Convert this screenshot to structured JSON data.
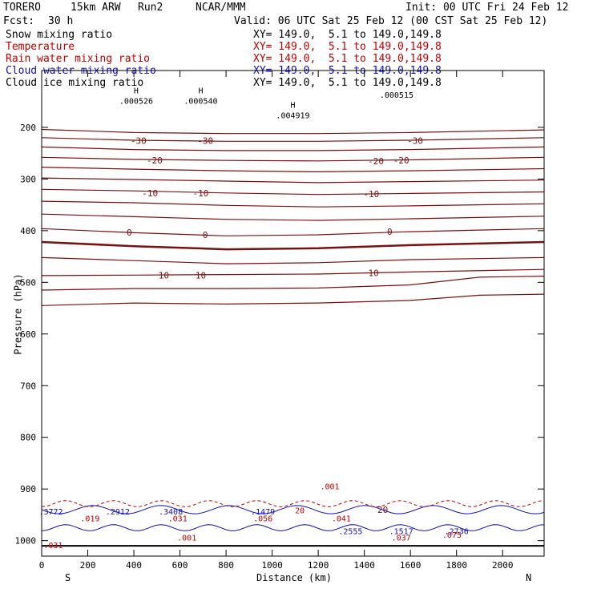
{
  "header": {
    "model": "TORERO",
    "resolution": "15km ARW",
    "run": "Run2",
    "org": "NCAR/MMM",
    "init": "Init: 00 UTC Fri 24 Feb 12",
    "fcst_label": "Fcst:",
    "fcst_value": "30 h",
    "valid": "Valid: 06 UTC Sat 25 Feb 12 (00 CST Sat 25 Feb 12)"
  },
  "legend": [
    {
      "name": "Snow mixing ratio",
      "xy": "XY= 149.0,  5.1 to 149.0,149.8",
      "color": "#000000"
    },
    {
      "name": "Temperature",
      "xy": "XY= 149.0,  5.1 to 149.0,149.8",
      "color": "#c00000"
    },
    {
      "name": "Rain water mixing ratio",
      "xy": "XY= 149.0,  5.1 to 149.0,149.8",
      "color": "#c00000"
    },
    {
      "name": "Cloud water mixing ratio",
      "xy": "XY= 149.0,  5.1 to 149.0,149.8",
      "color": "#1010c0"
    },
    {
      "name": "Cloud ice mixing ratio",
      "xy": "XY= 149.0,  5.1 to 149.0,149.8",
      "color": "#000000"
    }
  ],
  "chart_data": {
    "type": "cross-section contour",
    "xlabel": "Distance (km)",
    "ylabel": "Pressure (hPa)",
    "xlim": [
      0,
      2180
    ],
    "ylim": [
      1030,
      90
    ],
    "x_ticks": [
      0,
      200,
      400,
      600,
      800,
      1000,
      1200,
      1400,
      1600,
      1800,
      2000
    ],
    "y_ticks": [
      200,
      300,
      400,
      500,
      600,
      700,
      800,
      900,
      1000
    ],
    "endpoint_left": "S",
    "endpoint_right": "N",
    "temperature_contours": [
      {
        "level": -30,
        "points": [
          [
            0,
            204
          ],
          [
            400,
            210
          ],
          [
            800,
            212
          ],
          [
            1200,
            212
          ],
          [
            1600,
            210
          ],
          [
            2180,
            205
          ]
        ]
      },
      {
        "level": -30,
        "points": [
          [
            0,
            220
          ],
          [
            400,
            225
          ],
          [
            800,
            227
          ],
          [
            1200,
            227
          ],
          [
            1600,
            225
          ],
          [
            2180,
            220
          ]
        ]
      },
      {
        "level": -30,
        "points": [
          [
            0,
            238
          ],
          [
            400,
            243
          ],
          [
            800,
            245
          ],
          [
            1200,
            245
          ],
          [
            1600,
            243
          ],
          [
            2180,
            238
          ]
        ]
      },
      {
        "level": -20,
        "points": [
          [
            0,
            258
          ],
          [
            400,
            262
          ],
          [
            800,
            264
          ],
          [
            1200,
            265
          ],
          [
            1600,
            263
          ],
          [
            2180,
            258
          ]
        ]
      },
      {
        "level": -20,
        "points": [
          [
            0,
            277
          ],
          [
            400,
            281
          ],
          [
            800,
            284
          ],
          [
            1200,
            286
          ],
          [
            1600,
            284
          ],
          [
            2180,
            280
          ]
        ]
      },
      {
        "level": -20,
        "points": [
          [
            0,
            298
          ],
          [
            400,
            301
          ],
          [
            800,
            304
          ],
          [
            1200,
            307
          ],
          [
            1600,
            305
          ],
          [
            2180,
            302
          ]
        ]
      },
      {
        "level": -10,
        "points": [
          [
            0,
            320
          ],
          [
            400,
            323
          ],
          [
            800,
            327
          ],
          [
            1200,
            330
          ],
          [
            1600,
            328
          ],
          [
            2180,
            325
          ]
        ]
      },
      {
        "level": -10,
        "points": [
          [
            0,
            343
          ],
          [
            400,
            346
          ],
          [
            800,
            351
          ],
          [
            1200,
            354
          ],
          [
            1600,
            352
          ],
          [
            2180,
            348
          ]
        ]
      },
      {
        "level": -10,
        "points": [
          [
            0,
            368
          ],
          [
            400,
            373
          ],
          [
            800,
            378
          ],
          [
            1200,
            380
          ],
          [
            1600,
            377
          ],
          [
            2180,
            372
          ]
        ]
      },
      {
        "level": 0,
        "points": [
          [
            0,
            396
          ],
          [
            400,
            404
          ],
          [
            800,
            410
          ],
          [
            1200,
            408
          ],
          [
            1600,
            402
          ],
          [
            2180,
            396
          ]
        ]
      },
      {
        "level": 0,
        "points": [
          [
            0,
            422
          ],
          [
            400,
            430
          ],
          [
            800,
            436
          ],
          [
            1200,
            434
          ],
          [
            1600,
            428
          ],
          [
            2180,
            422
          ]
        ]
      },
      {
        "level": 0,
        "points": [
          [
            0,
            452
          ],
          [
            400,
            458
          ],
          [
            800,
            464
          ],
          [
            1200,
            462
          ],
          [
            1600,
            456
          ],
          [
            2180,
            452
          ]
        ]
      },
      {
        "level": 10,
        "points": [
          [
            0,
            487
          ],
          [
            400,
            486
          ],
          [
            800,
            485
          ],
          [
            1200,
            484
          ],
          [
            1600,
            480
          ],
          [
            2180,
            475
          ]
        ]
      },
      {
        "level": 10,
        "points": [
          [
            0,
            515
          ],
          [
            400,
            512
          ],
          [
            800,
            512
          ],
          [
            1200,
            511
          ],
          [
            1600,
            505
          ],
          [
            1900,
            490
          ],
          [
            2180,
            488
          ]
        ]
      },
      {
        "level": 10,
        "points": [
          [
            0,
            545
          ],
          [
            400,
            540
          ],
          [
            800,
            542
          ],
          [
            1200,
            540
          ],
          [
            1600,
            535
          ],
          [
            1900,
            525
          ],
          [
            2180,
            523
          ]
        ]
      }
    ],
    "temperature_labels": [
      {
        "text": "-30",
        "x": 420,
        "p": 226
      },
      {
        "text": "-30",
        "x": 710,
        "p": 226
      },
      {
        "text": "-30",
        "x": 1620,
        "p": 226
      },
      {
        "text": "-20",
        "x": 490,
        "p": 264
      },
      {
        "text": "-20",
        "x": 1450,
        "p": 265
      },
      {
        "text": "-20",
        "x": 1560,
        "p": 264
      },
      {
        "text": "-10",
        "x": 470,
        "p": 327
      },
      {
        "text": "-10",
        "x": 690,
        "p": 327
      },
      {
        "text": "-10",
        "x": 1430,
        "p": 329
      },
      {
        "text": "0",
        "x": 380,
        "p": 403
      },
      {
        "text": "0",
        "x": 710,
        "p": 408
      },
      {
        "text": "0",
        "x": 1510,
        "p": 402
      },
      {
        "text": "10",
        "x": 530,
        "p": 486
      },
      {
        "text": "10",
        "x": 690,
        "p": 486
      },
      {
        "text": "10",
        "x": 1440,
        "p": 482
      },
      {
        "text": "20",
        "x": 1480,
        "p": 940
      }
    ],
    "snow_labels": [
      {
        "text": ".000526",
        "x": 410,
        "p": 150,
        "h": "H"
      },
      {
        "text": ".000540",
        "x": 690,
        "p": 150,
        "h": "H"
      },
      {
        "text": ".004919",
        "x": 1090,
        "p": 178,
        "h": "H"
      },
      {
        "text": ".000515",
        "x": 1540,
        "p": 138,
        "h": ""
      }
    ],
    "rain_labels": [
      {
        "text": ".001",
        "x": 1250,
        "p": 896
      },
      {
        "text": ".019",
        "x": 210,
        "p": 958
      },
      {
        "text": ".056",
        "x": 960,
        "p": 958
      },
      {
        "text": ".031",
        "x": 590,
        "p": 958
      },
      {
        "text": ".041",
        "x": 1300,
        "p": 958
      },
      {
        "text": ".001",
        "x": 630,
        "p": 995
      },
      {
        "text": ".037",
        "x": 1560,
        "p": 995
      },
      {
        "text": ".075",
        "x": 1780,
        "p": 990
      },
      {
        "text": ".031",
        "x": 50,
        "p": 1010
      },
      {
        "text": "20",
        "x": 1120,
        "p": 942
      }
    ],
    "cloud_labels": [
      {
        "text": ".3772",
        "x": 40,
        "p": 945
      },
      {
        "text": ".2912",
        "x": 330,
        "p": 945
      },
      {
        "text": ".3408",
        "x": 560,
        "p": 945
      },
      {
        "text": ".1479",
        "x": 960,
        "p": 945
      },
      {
        "text": ".2555",
        "x": 1340,
        "p": 983
      },
      {
        "text": ".1517",
        "x": 1560,
        "p": 983
      },
      {
        "text": ".2736",
        "x": 1800,
        "p": 983
      }
    ]
  }
}
